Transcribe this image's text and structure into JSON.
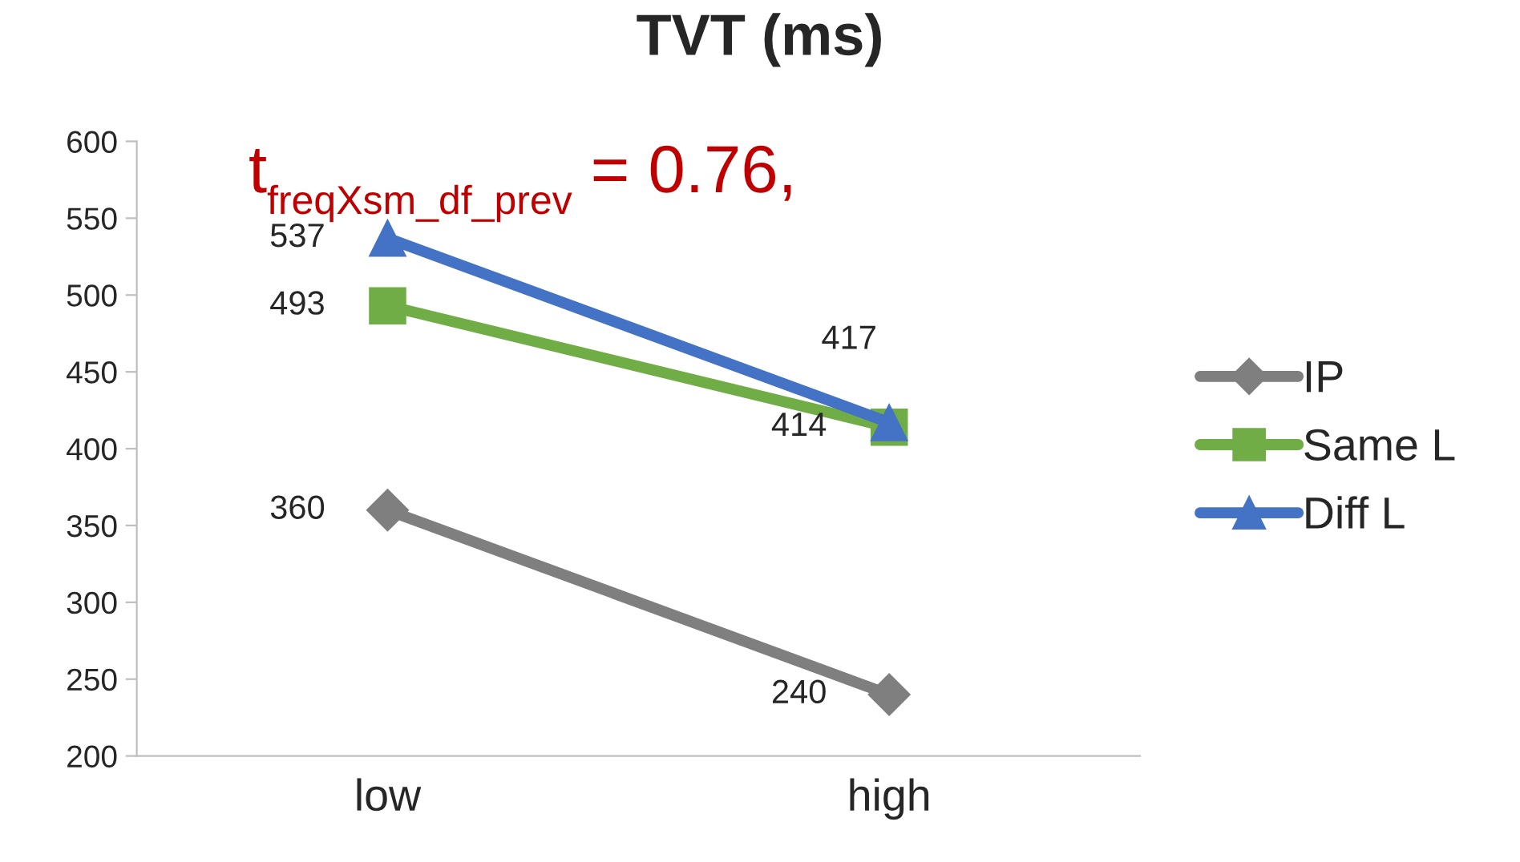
{
  "chart_data": {
    "type": "line",
    "title": "TVT (ms)",
    "categories": [
      "low",
      "high"
    ],
    "series": [
      {
        "name": "IP",
        "color": "#7f7f7f",
        "values": [
          360,
          240
        ],
        "marker": "diamond"
      },
      {
        "name": "Same L",
        "color": "#70ad47",
        "values": [
          493,
          414
        ],
        "marker": "square"
      },
      {
        "name": "Diff L",
        "color": "#4472c4",
        "values": [
          537,
          417
        ],
        "marker": "triangle"
      }
    ],
    "ylim": [
      200,
      600
    ],
    "yticks": [
      200,
      250,
      300,
      350,
      400,
      450,
      500,
      550,
      600
    ],
    "grid": false,
    "legend": "right",
    "data_labels": true,
    "line_style": "solid",
    "annotations": [
      "t$_{freqXsm_df_prev}$ = 0.76,"
    ]
  }
}
